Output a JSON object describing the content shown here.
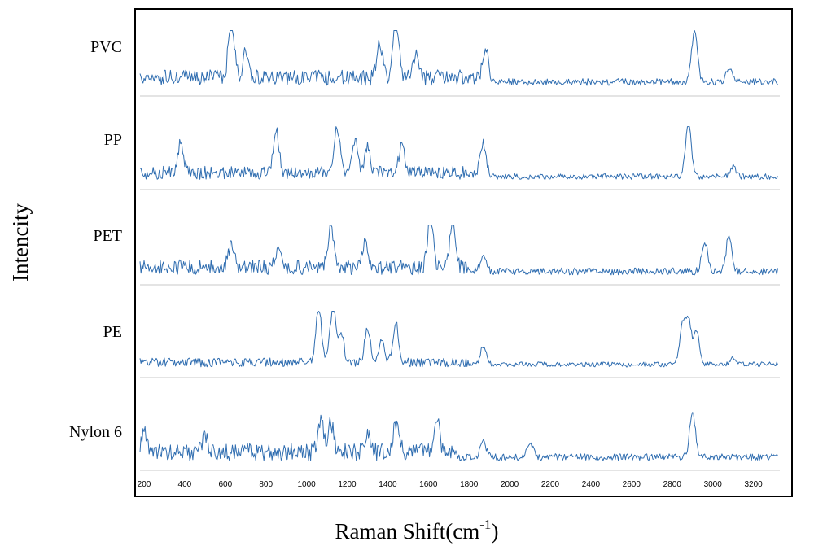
{
  "chart_data": {
    "type": "line",
    "title": "",
    "xlabel": "Raman Shift(cm",
    "xlabel_superscript": "-1",
    "xlabel_close": ")",
    "ylabel": "Intencity",
    "xlim": [
      180,
      3330
    ],
    "x_ticks": [
      200,
      400,
      600,
      800,
      1000,
      1200,
      1400,
      1600,
      1800,
      2000,
      2200,
      2400,
      2600,
      2800,
      3000,
      3200
    ],
    "x_tick_labels": [
      "200",
      "400",
      "600",
      "800",
      "1000",
      "1200",
      "1400",
      "1600",
      "1800",
      "2000",
      "2200",
      "2400",
      "2600",
      "2800",
      "3000",
      "3200"
    ],
    "grid": false,
    "legend": "none",
    "layout": "stacked offset spectra",
    "line_color": "#2f6db0",
    "x_start": 180,
    "x_end": 3320,
    "series": [
      {
        "name": "PVC",
        "base_noise": 0.16,
        "noise_change_at": 1900,
        "noise_after": 0.07,
        "peaks": [
          [
            630,
            1.0
          ],
          [
            700,
            0.4
          ],
          [
            1360,
            0.6
          ],
          [
            1440,
            0.95
          ],
          [
            1540,
            0.45
          ],
          [
            1880,
            0.5
          ],
          [
            2910,
            0.85
          ],
          [
            3080,
            0.25
          ]
        ]
      },
      {
        "name": "PP",
        "base_noise": 0.14,
        "noise_change_at": 1900,
        "noise_after": 0.06,
        "peaks": [
          [
            380,
            0.55
          ],
          [
            850,
            0.75
          ],
          [
            1150,
            0.78
          ],
          [
            1240,
            0.5
          ],
          [
            1300,
            0.45
          ],
          [
            1470,
            0.5
          ],
          [
            1870,
            0.5
          ],
          [
            2880,
            0.95
          ],
          [
            3100,
            0.18
          ]
        ]
      },
      {
        "name": "PET",
        "base_noise": 0.17,
        "noise_change_at": 1800,
        "noise_after": 0.08,
        "peaks": [
          [
            630,
            0.4
          ],
          [
            860,
            0.3
          ],
          [
            1120,
            0.75
          ],
          [
            1290,
            0.5
          ],
          [
            1610,
            0.95
          ],
          [
            1720,
            0.9
          ],
          [
            1870,
            0.3
          ],
          [
            2960,
            0.55
          ],
          [
            3080,
            0.65
          ]
        ]
      },
      {
        "name": "PE",
        "base_noise": 0.09,
        "noise_change_at": 1800,
        "noise_after": 0.05,
        "peaks": [
          [
            1060,
            0.88
          ],
          [
            1130,
            0.92
          ],
          [
            1170,
            0.45
          ],
          [
            1300,
            0.55
          ],
          [
            1370,
            0.35
          ],
          [
            1440,
            0.62
          ],
          [
            1870,
            0.3
          ],
          [
            2850,
            0.6
          ],
          [
            2880,
            0.7
          ],
          [
            2920,
            0.55
          ],
          [
            3100,
            0.12
          ]
        ]
      },
      {
        "name": "Nylon 6",
        "base_noise": 0.2,
        "noise_change_at": 1750,
        "noise_after": 0.08,
        "peaks": [
          [
            200,
            0.4
          ],
          [
            500,
            0.35
          ],
          [
            1070,
            0.6
          ],
          [
            1120,
            0.55
          ],
          [
            1300,
            0.4
          ],
          [
            1440,
            0.55
          ],
          [
            1640,
            0.65
          ],
          [
            1870,
            0.3
          ],
          [
            2100,
            0.3
          ],
          [
            2900,
            0.85
          ]
        ]
      }
    ]
  }
}
